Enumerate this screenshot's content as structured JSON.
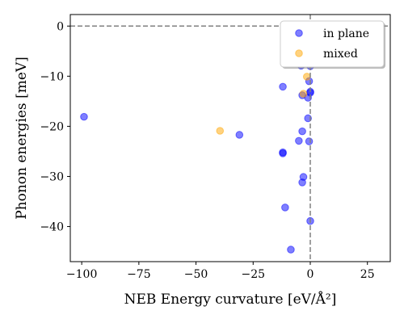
{
  "chart_data": {
    "type": "scatter",
    "title": "",
    "xlabel": "NEB Energy curvature [eV/Å²]",
    "ylabel": "Phonon energies [meV]",
    "xlim": [
      -105,
      35
    ],
    "ylim": [
      -47,
      2.3
    ],
    "xticks": [
      -100,
      -75,
      -50,
      -25,
      0,
      25
    ],
    "xtick_labels": [
      "−100",
      "−75",
      "−50",
      "−25",
      "0",
      "25"
    ],
    "yticks": [
      0,
      -10,
      -20,
      -30,
      -40
    ],
    "ytick_labels": [
      "0",
      "−10",
      "−20",
      "−30",
      "−40"
    ],
    "grid": false,
    "legend_position": "top-right",
    "reference_lines": {
      "x": 0,
      "y": 0,
      "style": "dashed"
    },
    "series": [
      {
        "name": "in plane",
        "color": "#0000ff",
        "alpha": 0.5,
        "points": [
          [
            -99,
            -18.1
          ],
          [
            -31,
            -21.7
          ],
          [
            -12,
            -12.1
          ],
          [
            -12,
            -25.2
          ],
          [
            -12,
            -25.4
          ],
          [
            -11,
            -36.2
          ],
          [
            -8.5,
            -44.6
          ],
          [
            -5,
            -22.9
          ],
          [
            -4,
            -7.9
          ],
          [
            -3.5,
            -13.8
          ],
          [
            -3.5,
            -21
          ],
          [
            -3,
            -30.1
          ],
          [
            -3.5,
            -31.2
          ],
          [
            -1,
            -14.3
          ],
          [
            -1,
            -18.4
          ],
          [
            -0.5,
            -23
          ],
          [
            -0.5,
            -11
          ],
          [
            0,
            -13.3
          ],
          [
            0,
            -13.1
          ],
          [
            0,
            -8
          ],
          [
            0,
            -38.9
          ],
          [
            0,
            -6.5
          ]
        ]
      },
      {
        "name": "mixed",
        "color": "#ffa500",
        "alpha": 0.5,
        "points": [
          [
            -39.5,
            -20.9
          ],
          [
            -1.5,
            -10.1
          ],
          [
            -3,
            -13.5
          ]
        ]
      }
    ]
  }
}
